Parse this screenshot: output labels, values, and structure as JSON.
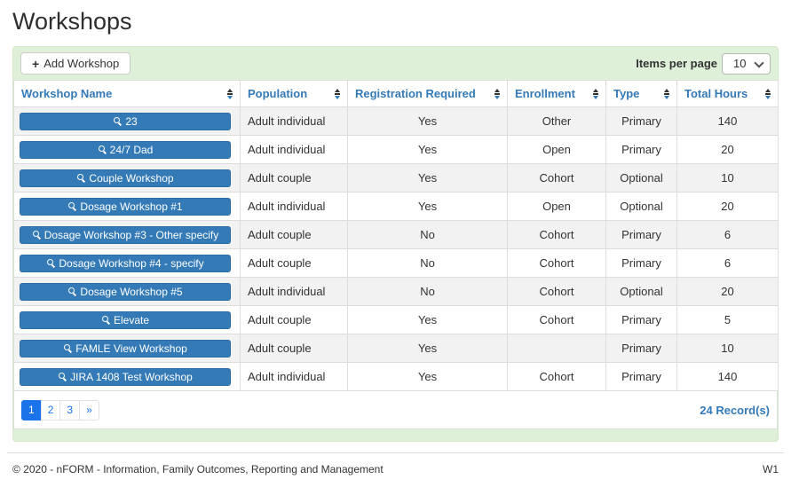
{
  "page": {
    "title": "Workshops"
  },
  "toolbar": {
    "add_button": "Add Workshop",
    "add_icon": "+",
    "items_per_page_label": "Items per page",
    "items_per_page_value": "10"
  },
  "table": {
    "columns": [
      "Workshop Name",
      "Population",
      "Registration Required",
      "Enrollment",
      "Type",
      "Total Hours"
    ],
    "rows": [
      {
        "name": "23",
        "population": "Adult individual",
        "registration": "Yes",
        "enrollment": "Other",
        "type": "Primary",
        "hours": "140"
      },
      {
        "name": "24/7 Dad",
        "population": "Adult individual",
        "registration": "Yes",
        "enrollment": "Open",
        "type": "Primary",
        "hours": "20"
      },
      {
        "name": "Couple Workshop",
        "population": "Adult couple",
        "registration": "Yes",
        "enrollment": "Cohort",
        "type": "Optional",
        "hours": "10"
      },
      {
        "name": "Dosage Workshop #1",
        "population": "Adult individual",
        "registration": "Yes",
        "enrollment": "Open",
        "type": "Optional",
        "hours": "20"
      },
      {
        "name": "Dosage Workshop #3 - Other specify",
        "population": "Adult couple",
        "registration": "No",
        "enrollment": "Cohort",
        "type": "Primary",
        "hours": "6"
      },
      {
        "name": "Dosage Workshop #4 - specify",
        "population": "Adult couple",
        "registration": "No",
        "enrollment": "Cohort",
        "type": "Primary",
        "hours": "6"
      },
      {
        "name": "Dosage Workshop #5",
        "population": "Adult individual",
        "registration": "No",
        "enrollment": "Cohort",
        "type": "Optional",
        "hours": "20"
      },
      {
        "name": "Elevate",
        "population": "Adult couple",
        "registration": "Yes",
        "enrollment": "Cohort",
        "type": "Primary",
        "hours": "5"
      },
      {
        "name": "FAMLE View Workshop",
        "population": "Adult couple",
        "registration": "Yes",
        "enrollment": "",
        "type": "Primary",
        "hours": "10"
      },
      {
        "name": "JIRA 1408 Test Workshop",
        "population": "Adult individual",
        "registration": "Yes",
        "enrollment": "Cohort",
        "type": "Primary",
        "hours": "140"
      }
    ]
  },
  "pagination": {
    "pages": [
      "1",
      "2",
      "3"
    ],
    "next": "»",
    "active": "1",
    "records": "24 Record(s)"
  },
  "footer": {
    "copyright": "© 2020 - nFORM - Information, Family Outcomes, Reporting and Management",
    "version": "W1"
  },
  "colors": {
    "accent_blue": "#337ab7",
    "panel_green": "#dff0d8",
    "panel_border": "#d6e9c6",
    "pagination_blue": "#1a73e8",
    "row_stripe": "#f2f2f2"
  }
}
